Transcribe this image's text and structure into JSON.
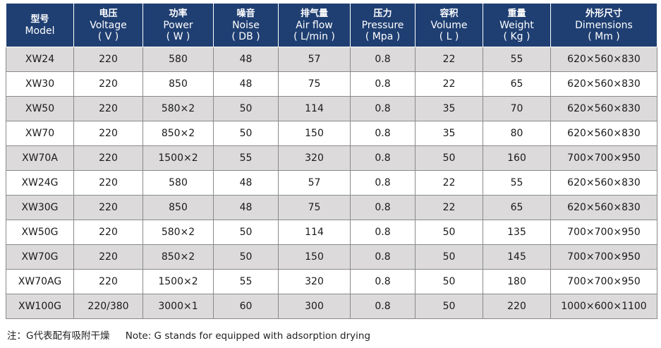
{
  "table": {
    "headers": [
      {
        "cn": "型号",
        "en": "Model",
        "unit": ""
      },
      {
        "cn": "电压",
        "en": "Voltage",
        "unit": "( V )"
      },
      {
        "cn": "功率",
        "en": "Power",
        "unit": "( W )"
      },
      {
        "cn": "噪音",
        "en": "Noise",
        "unit": "( DB )"
      },
      {
        "cn": "排气量",
        "en": "Air flow",
        "unit": "( L/min )"
      },
      {
        "cn": "压力",
        "en": "Pressure",
        "unit": "( Mpa )"
      },
      {
        "cn": "容积",
        "en": "Volume",
        "unit": "( L )"
      },
      {
        "cn": "重量",
        "en": "Weight",
        "unit": "( Kg )"
      },
      {
        "cn": "外形尺寸",
        "en": "Dimensions",
        "unit": "( Mm )"
      }
    ],
    "rows": [
      [
        "XW24",
        "220",
        "580",
        "48",
        "57",
        "0.8",
        "22",
        "55",
        "620×560×830"
      ],
      [
        "XW30",
        "220",
        "850",
        "48",
        "75",
        "0.8",
        "22",
        "65",
        "620×560×830"
      ],
      [
        "XW50",
        "220",
        "580×2",
        "50",
        "114",
        "0.8",
        "35",
        "70",
        "620×560×830"
      ],
      [
        "XW70",
        "220",
        "850×2",
        "50",
        "150",
        "0.8",
        "35",
        "80",
        "620×560×830"
      ],
      [
        "XW70A",
        "220",
        "1500×2",
        "55",
        "320",
        "0.8",
        "50",
        "160",
        "700×700×950"
      ],
      [
        "XW24G",
        "220",
        "580",
        "48",
        "57",
        "0.8",
        "22",
        "55",
        "620×560×830"
      ],
      [
        "XW30G",
        "220",
        "850",
        "48",
        "75",
        "0.8",
        "22",
        "65",
        "620×560×830"
      ],
      [
        "XW50G",
        "220",
        "580×2",
        "50",
        "114",
        "0.8",
        "50",
        "135",
        "700×700×950"
      ],
      [
        "XW70G",
        "220",
        "850×2",
        "50",
        "150",
        "0.8",
        "50",
        "145",
        "700×700×950"
      ],
      [
        "XW70AG",
        "220",
        "1500×2",
        "55",
        "320",
        "0.8",
        "50",
        "180",
        "700×700×950"
      ],
      [
        "XW100G",
        "220/380",
        "3000×1",
        "60",
        "300",
        "0.8",
        "50",
        "220",
        "1000×600×1100"
      ]
    ]
  },
  "note": {
    "cn": "注：G代表配有吸附干燥",
    "en": "Note: G stands for equipped with adsorption drying"
  },
  "colors": {
    "header_bg": "#1f3f72",
    "header_text": "#ffffff",
    "row_shaded": "#dcdada",
    "row_plain": "#ffffff",
    "grid": "#8a8a8a"
  }
}
